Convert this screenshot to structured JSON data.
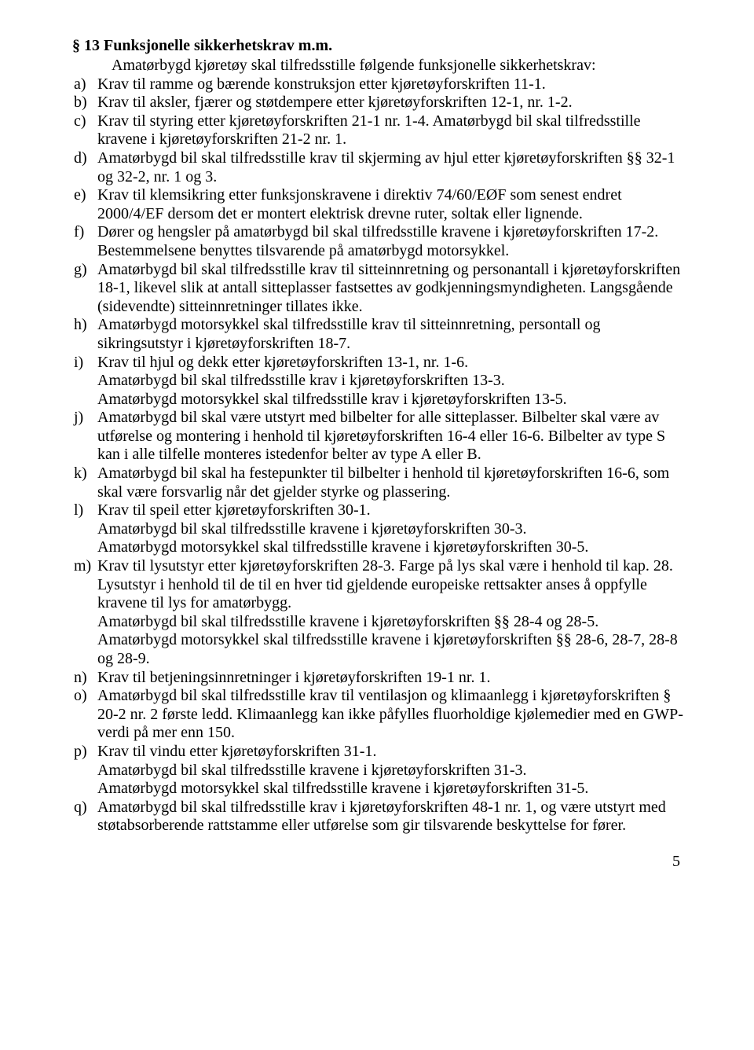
{
  "section_title": "§ 13 Funksjonelle sikkerhetskrav m.m.",
  "intro": "Amatørbygd kjøretøy skal tilfredsstille følgende funksjonelle sikkerhetskrav:",
  "items": [
    {
      "marker": "a)",
      "text": "Krav til ramme og bærende konstruksjon etter kjøretøyforskriften 11-1."
    },
    {
      "marker": "b)",
      "text": "Krav til aksler, fjærer og støtdempere etter kjøretøyforskriften 12-1, nr. 1-2."
    },
    {
      "marker": "c)",
      "text": "Krav til styring etter kjøretøyforskriften 21-1 nr. 1-4. Amatørbygd bil skal tilfredsstille kravene i kjøretøyforskriften 21-2 nr. 1."
    },
    {
      "marker": "d)",
      "text": "Amatørbygd bil skal tilfredsstille krav til skjerming av hjul etter kjøretøyforskriften §§ 32-1 og 32-2, nr. 1 og 3."
    },
    {
      "marker": "e)",
      "text": "Krav til klemsikring etter funksjonskravene i direktiv 74/60/EØF som senest endret 2000/4/EF dersom det er montert elektrisk drevne ruter, soltak eller lignende."
    },
    {
      "marker": "f)",
      "text": "Dører og hengsler på amatørbygd bil skal tilfredsstille kravene i kjøretøyforskriften 17-2. Bestemmelsene benyttes tilsvarende på amatørbygd motorsykkel."
    },
    {
      "marker": "g)",
      "text": "Amatørbygd bil skal tilfredsstille krav til sitteinnretning og personantall i kjøretøyforskriften 18-1, likevel slik at antall sitteplasser fastsettes av godkjenningsmyndigheten. Langsgående (sidevendte) sitteinnretninger tillates ikke."
    },
    {
      "marker": "h)",
      "text": "Amatørbygd motorsykkel skal tilfredsstille krav til sitteinnretning, persontall og sikringsutstyr i kjøretøyforskriften 18-7."
    },
    {
      "marker": "i)",
      "text": "Krav til hjul og dekk etter kjøretøyforskriften 13-1, nr. 1-6.\nAmatørbygd bil skal tilfredsstille krav i kjøretøyforskriften 13-3.\nAmatørbygd motorsykkel skal tilfredsstille krav i kjøretøyforskriften 13-5."
    },
    {
      "marker": "j)",
      "text": "Amatørbygd bil skal være utstyrt med bilbelter for alle sitteplasser. Bilbelter skal være av utførelse og montering i henhold til kjøretøyforskriften 16-4 eller 16-6. Bilbelter av type S kan i alle tilfelle monteres istedenfor belter av type A eller B."
    },
    {
      "marker": "k)",
      "text": "Amatørbygd bil skal ha festepunkter til bilbelter i henhold til kjøretøyforskriften 16-6, som skal være forsvarlig når det gjelder styrke og plassering."
    },
    {
      "marker": "l)",
      "text": "Krav til speil etter kjøretøyforskriften 30-1.\nAmatørbygd bil skal tilfredsstille kravene i kjøretøyforskriften 30-3.\nAmatørbygd motorsykkel skal tilfredsstille kravene i kjøretøyforskriften 30-5."
    },
    {
      "marker": "m)",
      "text": "Krav til lysutstyr etter kjøretøyforskriften 28-3. Farge på lys skal være i henhold til kap. 28. Lysutstyr i henhold til de til en hver tid gjeldende europeiske rettsakter anses å oppfylle kravene til lys for amatørbygg.\nAmatørbygd bil skal tilfredsstille kravene i kjøretøyforskriften §§ 28-4 og 28-5.\nAmatørbygd motorsykkel skal tilfredsstille kravene i kjøretøyforskriften §§ 28-6, 28-7, 28-8 og 28-9."
    },
    {
      "marker": "n)",
      "text": "Krav til betjeningsinnretninger i kjøretøyforskriften 19-1 nr. 1."
    },
    {
      "marker": "o)",
      "text": "Amatørbygd bil skal tilfredsstille krav til ventilasjon og klimaanlegg i kjøretøyforskriften § 20-2 nr. 2 første ledd. Klimaanlegg kan ikke påfylles fluorholdige kjølemedier med en GWP-verdi på mer enn 150."
    },
    {
      "marker": "p)",
      "text": "Krav til vindu etter kjøretøyforskriften 31-1.\nAmatørbygd bil skal tilfredsstille kravene i kjøretøyforskriften 31-3.\nAmatørbygd motorsykkel skal tilfredsstille kravene i kjøretøyforskriften 31-5."
    },
    {
      "marker": "q)",
      "text": "Amatørbygd bil skal tilfredsstille krav i kjøretøyforskriften 48-1 nr. 1, og være utstyrt med støtabsorberende rattstamme eller utførelse som gir tilsvarende beskyttelse for fører."
    }
  ],
  "page_number": "5"
}
